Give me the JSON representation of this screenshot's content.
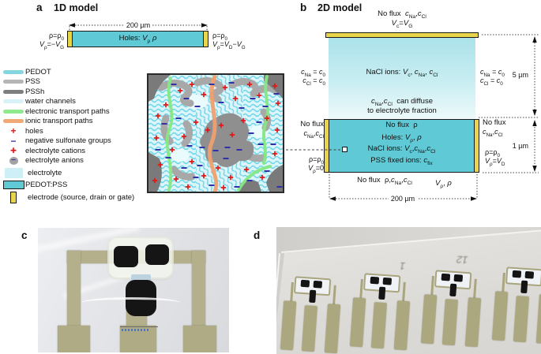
{
  "icons": {
    "plus": "+",
    "minus": "−"
  },
  "colors": {
    "pedot": "#85d6de",
    "pss": "#b5b5b5",
    "pssh": "#7e7e7e",
    "water_channels": "#d9f2f7",
    "electronic_paths": "#8fe98f",
    "ionic_paths": "#f0a877",
    "holes": "#e01818",
    "sulfonate": "#3535ad",
    "anion_circle": "#a2a2a2",
    "electrolyte": "#cdeff5",
    "pedot_pss": "#5fc9d5",
    "electrode": "#e9d54b"
  },
  "panel_a": {
    "label": "a",
    "title": "1D model",
    "dim_length": "200 µm",
    "bar_text": "Holes: <i>V</i><sub>ρ</sub> <i>ρ</i>",
    "left_bc_line1": "ρ=ρ<sub>0</sub>",
    "left_bc_line2": "<i>V</i><sub>ρ</sub>=−<i>V</i><sub>G</sub>",
    "right_bc_line1": "ρ=ρ<sub>0</sub>",
    "right_bc_line2": "<i>V</i><sub>ρ</sub>=<i>V</i><sub>D</sub>−<i>V</i><sub>G</sub>"
  },
  "legend": {
    "items": [
      {
        "label": "PEDOT"
      },
      {
        "label": "PSS"
      },
      {
        "label": "PSSh"
      },
      {
        "label": "water channels"
      },
      {
        "label": "electronic transport paths"
      },
      {
        "label": "ionic transport paths"
      },
      {
        "label": "holes"
      },
      {
        "label": "negative sulfonate groups"
      },
      {
        "label": "electrolyte cations"
      },
      {
        "label": "electrolyte anions"
      },
      {
        "label": "electrolyte"
      },
      {
        "label": "PEDOT:PSS"
      },
      {
        "label": "electrode (source, drain or gate)"
      }
    ]
  },
  "panel_b": {
    "label": "b",
    "title": "2D model",
    "top_noflux": "No flux&nbsp;&nbsp;<i>c</i><sub>Na</sub>,<i>c</i><sub>Cl</sub>",
    "top_voltage": "<i>V</i><sub>c</sub>=<i>V</i><sub>G</sub>",
    "electrolyte_center": "NaCl ions: <i>V</i><sub>c</sub>, <i>c</i><sub>Na</sub>, <i>c</i><sub>Cl</sub>",
    "diffuse_line1": "<i>c</i><sub>Na</sub>,<i>c</i><sub>Cl</sub>&nbsp;&nbsp;can diffuse",
    "diffuse_line2": "to electrolyte fraction",
    "elec_left_line1": "<i>c</i><sub>Na</sub> = <i>c</i><sub>0</sub>",
    "elec_left_line2": "<i>c</i><sub>Cl</sub> = <i>c</i><sub>0</sub>",
    "elec_right_line1": "<i>c</i><sub>Na</sub> = <i>c</i><sub>0</sub>",
    "elec_right_line2": "<i>c</i><sub>Cl</sub> = <i>c</i><sub>0</sub>",
    "dim_height_electrolyte": "5 µm",
    "channel_line1": "No flux&nbsp;&nbsp;ρ",
    "channel_line2": "Holes: <i>V</i><sub>ρ</sub>, <i>ρ</i>",
    "channel_line3": "NaCl ions: <i>V</i><sub>c</sub>,<i>c</i><sub>Na</sub>,<i>c</i><sub>Cl</sub>",
    "channel_line4": "PSS fixed ions: <i>c</i><sub>fix</sub>",
    "chan_left_noflux1": "No flux",
    "chan_left_noflux2": "<i>c</i><sub>Na</sub>,<i>c</i><sub>Cl</sub>",
    "chan_left_bc1": "ρ=ρ<sub>0</sub>",
    "chan_left_bc2": "<i>V</i><sub>ρ</sub>=0",
    "chan_right_noflux1": "No flux",
    "chan_right_noflux2": "<i>c</i><sub>Na</sub>,<i>c</i><sub>Cl</sub>",
    "chan_right_bc1": "ρ=ρ<sub>0</sub>",
    "chan_right_bc2": "<i>V</i><sub>ρ</sub>=<i>V</i><sub>D</sub>",
    "dim_height_channel": "1 µm",
    "bottom_noflux": "No flux&nbsp;&nbsp;ρ,<i>c</i><sub>Na</sub>,<i>c</i><sub>Cl</sub>",
    "bottom_voltage": "<i>V</i><sub>ρ</sub>, <i>ρ</i>",
    "dim_length": "200 µm"
  },
  "panel_c": {
    "label": "c"
  },
  "panel_d": {
    "label": "d",
    "handwritten_mark1": "1",
    "handwritten_mark2": "12"
  }
}
